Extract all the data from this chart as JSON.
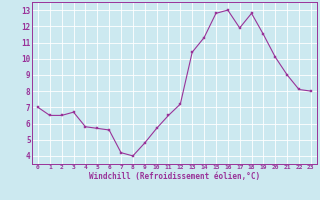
{
  "x": [
    0,
    1,
    2,
    3,
    4,
    5,
    6,
    7,
    8,
    9,
    10,
    11,
    12,
    13,
    14,
    15,
    16,
    17,
    18,
    19,
    20,
    21,
    22,
    23
  ],
  "y": [
    7.0,
    6.5,
    6.5,
    6.7,
    5.8,
    5.7,
    5.6,
    4.2,
    4.0,
    4.8,
    5.7,
    6.5,
    7.2,
    10.4,
    11.3,
    12.8,
    13.0,
    11.9,
    12.8,
    11.5,
    10.1,
    9.0,
    8.1,
    8.0
  ],
  "title": "",
  "xlabel": "Windchill (Refroidissement éolien,°C)",
  "line_color": "#993399",
  "marker_color": "#993399",
  "bg_color": "#cce9f0",
  "grid_color": "#ffffff",
  "axis_color": "#993399",
  "tick_color": "#993399",
  "label_color": "#993399",
  "xlim": [
    -0.5,
    23.5
  ],
  "ylim": [
    3.5,
    13.5
  ],
  "yticks": [
    4,
    5,
    6,
    7,
    8,
    9,
    10,
    11,
    12,
    13
  ],
  "xticks": [
    0,
    1,
    2,
    3,
    4,
    5,
    6,
    7,
    8,
    9,
    10,
    11,
    12,
    13,
    14,
    15,
    16,
    17,
    18,
    19,
    20,
    21,
    22,
    23
  ]
}
